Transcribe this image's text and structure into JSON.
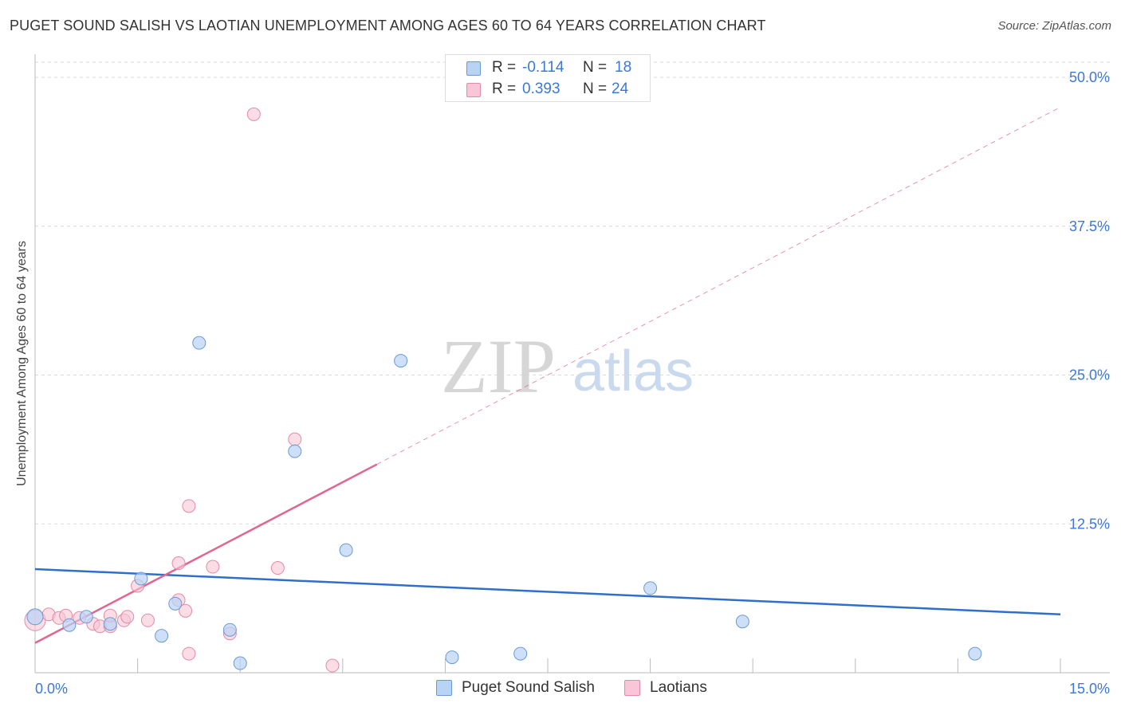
{
  "header": {
    "title": "PUGET SOUND SALISH VS LAOTIAN UNEMPLOYMENT AMONG AGES 60 TO 64 YEARS CORRELATION CHART",
    "source": "Source: ZipAtlas.com"
  },
  "watermark": {
    "zip": "ZIP",
    "atlas": "atlas"
  },
  "colors": {
    "blue_fill": "#b9d3f5",
    "blue_stroke": "#6a9ad8",
    "blue_line": "#2f6fcc",
    "pink_fill": "#f8c6d6",
    "pink_stroke": "#e48aa8",
    "pink_line": "#e2658f",
    "tick_text": "#3c78d8",
    "grid": "#d9d9d9"
  },
  "legend_top": {
    "rows": [
      {
        "r_label": "R =",
        "r_value": "-0.114",
        "n_label": "N =",
        "n_value": "18"
      },
      {
        "r_label": "R =",
        "r_value": "0.393",
        "n_label": "N =",
        "n_value": "24"
      }
    ]
  },
  "legend_bottom": {
    "series1": "Puget Sound Salish",
    "series2": "Laotians"
  },
  "chart_data": {
    "type": "scatter",
    "title": "PUGET SOUND SALISH VS LAOTIAN UNEMPLOYMENT AMONG AGES 60 TO 64 YEARS CORRELATION CHART",
    "xlabel": "",
    "ylabel": "Unemployment Among Ages 60 to 64 years",
    "xlim": [
      0,
      15
    ],
    "ylim": [
      0,
      50
    ],
    "x_tick_labels": [
      "0.0%",
      "15.0%"
    ],
    "y_ticks": [
      12.5,
      25.0,
      37.5,
      50.0
    ],
    "y_tick_labels": [
      "12.5%",
      "25.0%",
      "37.5%",
      "50.0%"
    ],
    "grid": true,
    "series": [
      {
        "name": "Puget Sound Salish",
        "points": [
          [
            0.0,
            4.7
          ],
          [
            0.5,
            4.0
          ],
          [
            0.75,
            4.7
          ],
          [
            1.1,
            4.1
          ],
          [
            1.55,
            7.9
          ],
          [
            1.85,
            3.1
          ],
          [
            2.05,
            5.8
          ],
          [
            2.4,
            27.7
          ],
          [
            2.85,
            3.6
          ],
          [
            3.0,
            0.8
          ],
          [
            3.8,
            18.6
          ],
          [
            4.55,
            10.3
          ],
          [
            5.35,
            26.2
          ],
          [
            6.1,
            1.3
          ],
          [
            7.1,
            1.6
          ],
          [
            9.0,
            7.1
          ],
          [
            10.35,
            4.3
          ],
          [
            13.75,
            1.6
          ]
        ],
        "trend": {
          "x": [
            0,
            15
          ],
          "y": [
            8.7,
            4.9
          ]
        }
      },
      {
        "name": "Laotians",
        "points": [
          [
            0.0,
            4.4
          ],
          [
            0.2,
            4.9
          ],
          [
            0.35,
            4.6
          ],
          [
            0.45,
            4.8
          ],
          [
            0.65,
            4.6
          ],
          [
            0.85,
            4.1
          ],
          [
            0.95,
            3.9
          ],
          [
            1.1,
            3.9
          ],
          [
            1.1,
            4.8
          ],
          [
            1.3,
            4.4
          ],
          [
            1.35,
            4.7
          ],
          [
            1.65,
            4.4
          ],
          [
            1.5,
            7.3
          ],
          [
            2.1,
            9.2
          ],
          [
            2.1,
            6.1
          ],
          [
            2.2,
            5.2
          ],
          [
            2.25,
            1.6
          ],
          [
            2.25,
            14.0
          ],
          [
            2.6,
            8.9
          ],
          [
            2.85,
            3.3
          ],
          [
            3.2,
            46.9
          ],
          [
            3.55,
            8.8
          ],
          [
            3.8,
            19.6
          ],
          [
            4.35,
            0.6
          ]
        ],
        "trend_solid": {
          "x": [
            0,
            5.0
          ],
          "y": [
            2.5,
            17.5
          ]
        },
        "trend_dashed": {
          "x": [
            5.0,
            15
          ],
          "y": [
            17.5,
            47.5
          ]
        }
      }
    ]
  }
}
